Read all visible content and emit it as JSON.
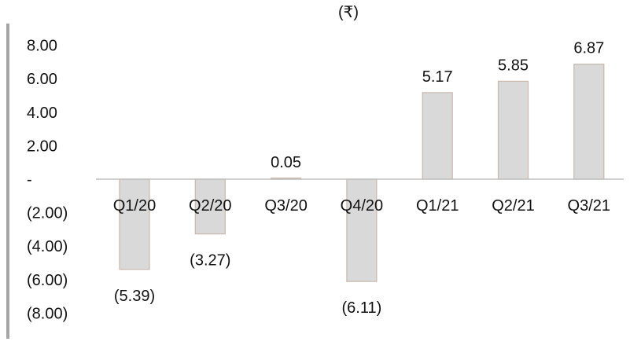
{
  "chart_data": {
    "type": "bar",
    "unit_label": "(₹)",
    "categories": [
      "Q1/20",
      "Q2/20",
      "Q3/20",
      "Q4/20",
      "Q1/21",
      "Q2/21",
      "Q3/21"
    ],
    "values": [
      -5.39,
      -3.27,
      0.05,
      -6.11,
      5.17,
      5.85,
      6.87
    ],
    "value_labels": [
      "(5.39)",
      "(3.27)",
      "0.05",
      "(6.11)",
      "5.17",
      "5.85",
      "6.87"
    ],
    "y_ticks": [
      8,
      6,
      4,
      2,
      0,
      -2,
      -4,
      -6,
      -8
    ],
    "y_tick_labels": [
      "8.00",
      "6.00",
      "4.00",
      "2.00",
      "-",
      "(2.00)",
      "(4.00)",
      "(6.00)",
      "(8.00)"
    ],
    "ylim": [
      -8,
      8
    ],
    "grid": false,
    "legend": "none",
    "colors": {
      "bar_fill": "#d9d9d9",
      "bar_stroke": "#c9b8ad",
      "axis_line": "#a6a6a6",
      "zero_line": "#bfbfbf",
      "text": "#111111"
    }
  }
}
